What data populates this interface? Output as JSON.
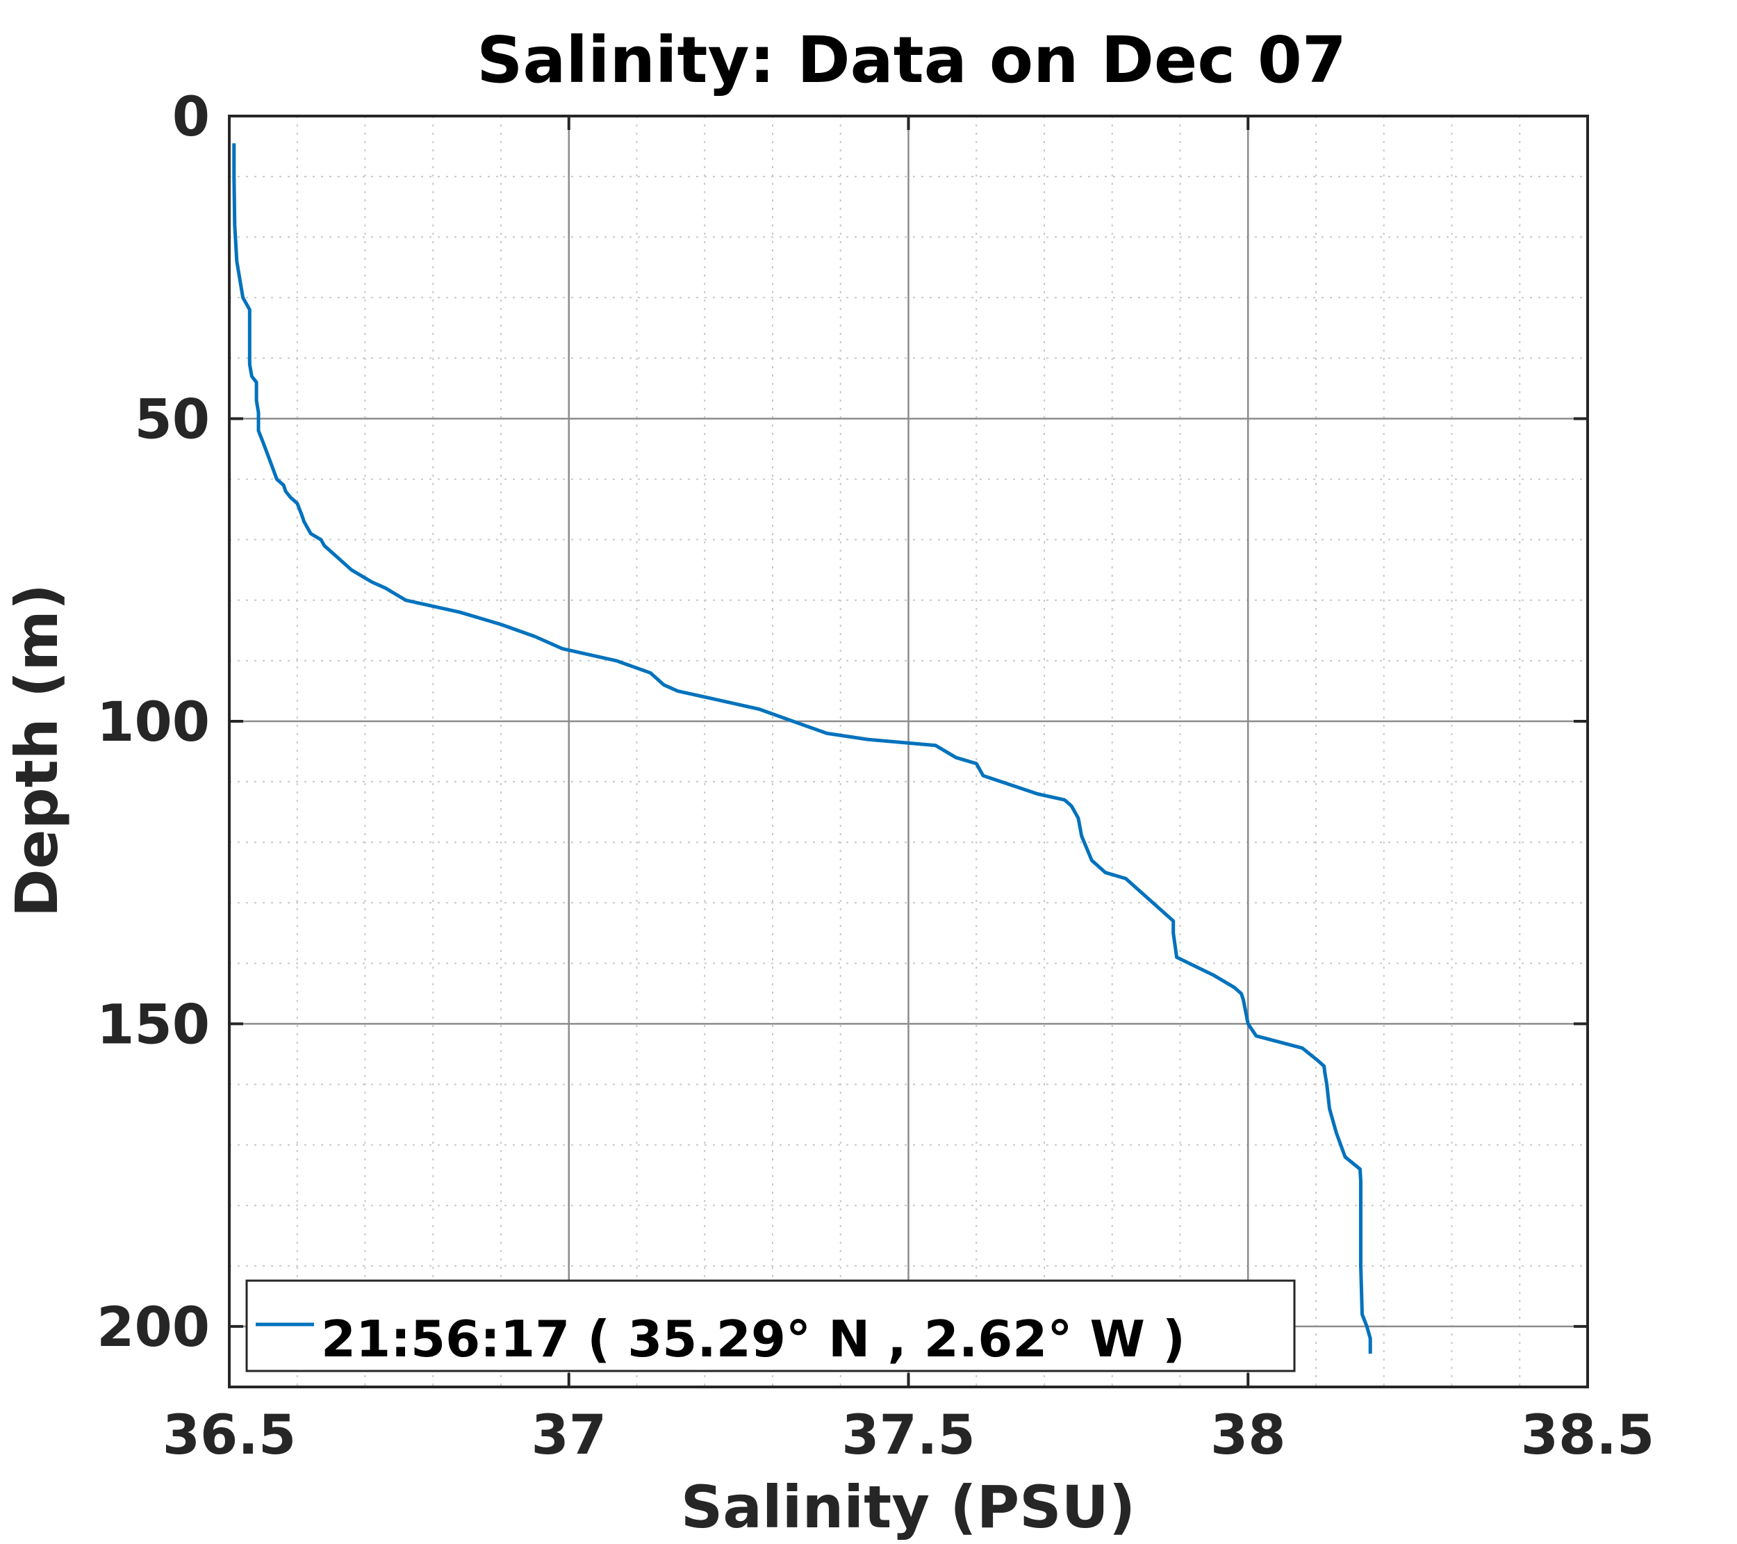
{
  "chart_data": {
    "type": "line",
    "title": "Salinity: Data on Dec 07",
    "xlabel": "Salinity (PSU)",
    "ylabel": "Depth (m)",
    "xlim": [
      36.5,
      38.5
    ],
    "ylim": [
      0,
      210
    ],
    "y_reversed": true,
    "xticks": [
      36.5,
      37,
      37.5,
      38,
      38.5
    ],
    "xtick_labels": [
      "36.5",
      "37",
      "37.5",
      "38",
      "38.5"
    ],
    "yticks": [
      0,
      50,
      100,
      150,
      200
    ],
    "ytick_labels": [
      "0",
      "50",
      "100",
      "150",
      "200"
    ],
    "grid": true,
    "minor_grid": true,
    "legend_position": "bottom-left",
    "colors": {
      "series": "#0072bd",
      "major_grid": "#8c8c8c",
      "minor_grid": "#c8c8c8",
      "axes": "#262626"
    },
    "series": [
      {
        "name": "21:56:17 ( 35.29° N , 2.62° W )",
        "x": [
          36.507,
          36.507,
          36.508,
          36.511,
          36.52,
          36.53,
          36.53,
          36.53,
          36.533,
          36.54,
          36.54,
          36.543,
          36.543,
          36.55,
          36.56,
          36.57,
          36.58,
          36.583,
          36.59,
          36.6,
          36.607,
          36.61,
          36.62,
          36.635,
          36.64,
          36.66,
          36.67,
          36.68,
          36.71,
          36.73,
          36.745,
          36.76,
          36.84,
          36.9,
          36.95,
          36.99,
          37.07,
          37.12,
          37.14,
          37.16,
          37.28,
          37.33,
          37.38,
          37.44,
          37.54,
          37.57,
          37.6,
          37.61,
          37.69,
          37.73,
          37.74,
          37.75,
          37.755,
          37.77,
          37.79,
          37.82,
          37.86,
          37.89,
          37.89,
          37.895,
          37.95,
          37.98,
          37.99,
          37.993,
          38.0,
          38.012,
          38.08,
          38.102,
          38.112,
          38.113,
          38.116,
          38.12,
          38.13,
          38.143,
          38.165,
          38.166,
          38.166,
          38.166,
          38.168,
          38.175,
          38.18,
          38.18
        ],
        "y": [
          4.5,
          10,
          18,
          24,
          30,
          32,
          38,
          41,
          43,
          44,
          47,
          49,
          52,
          54,
          57,
          60,
          61,
          62,
          63,
          64,
          66,
          67,
          69,
          70,
          71,
          73,
          74,
          75,
          77,
          78,
          79,
          80,
          82,
          84,
          86,
          88,
          90,
          92,
          94,
          95,
          98,
          100,
          102,
          103,
          104,
          106,
          107,
          109,
          112,
          113,
          114,
          116,
          119,
          123,
          125,
          126,
          130,
          133,
          135,
          139,
          142,
          144,
          145,
          146,
          150,
          152,
          154,
          156,
          157,
          158,
          160,
          164,
          168,
          172,
          174,
          176,
          180,
          190,
          198,
          200,
          202,
          204.5
        ]
      }
    ]
  }
}
